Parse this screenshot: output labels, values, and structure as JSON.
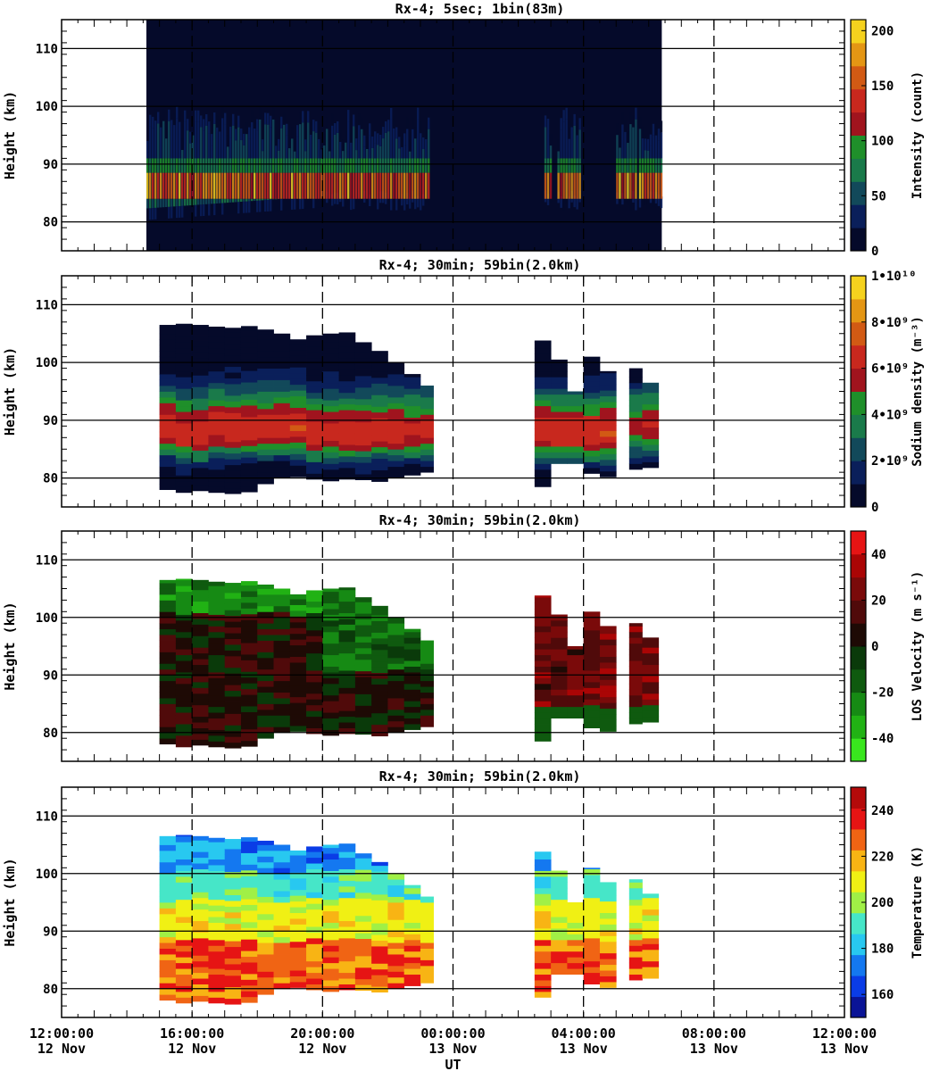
{
  "figure": {
    "x_axis_label": "UT",
    "x_tick_labels": [
      {
        "time": "12:00:00",
        "date": "12 Nov"
      },
      {
        "time": "16:00:00",
        "date": "12 Nov"
      },
      {
        "time": "20:00:00",
        "date": "12 Nov"
      },
      {
        "time": "00:00:00",
        "date": "13 Nov"
      },
      {
        "time": "04:00:00",
        "date": "13 Nov"
      },
      {
        "time": "08:00:00",
        "date": "13 Nov"
      },
      {
        "time": "12:00:00",
        "date": "13 Nov"
      }
    ]
  },
  "chart_data": [
    {
      "type": "heatmap",
      "title": "Rx-4;  5sec; 1bin(83m)",
      "ylabel": "Height (km)",
      "ylim": [
        75,
        115
      ],
      "xlim_hours": [
        12,
        36
      ],
      "y_ticks": [
        "80",
        "90",
        "100",
        "110"
      ],
      "data_x_range_hours": [
        14.6,
        30.4
      ],
      "colorbar": {
        "label": "Intensity (count)",
        "range": [
          0,
          210
        ],
        "tick_values": [
          0,
          50,
          100,
          150,
          200
        ],
        "tick_labels": [
          "0",
          "50",
          "100",
          "150",
          "200"
        ],
        "colors": [
          "#050a2a",
          "#0a1f5a",
          "#12495a",
          "#1a7a4a",
          "#1f8f2a",
          "#a0141e",
          "#c8281e",
          "#d25a14",
          "#e49614",
          "#f5d21e"
        ]
      },
      "observed_periods_hours": [
        [
          14.6,
          23.3
        ],
        [
          26.8,
          27.0
        ],
        [
          27.2,
          27.9
        ],
        [
          29.0,
          29.6
        ],
        [
          29.7,
          30.4
        ]
      ],
      "peak_layer_km": [
        84,
        88
      ]
    },
    {
      "type": "heatmap",
      "title": "Rx-4; 30min; 59bin(2.0km)",
      "ylabel": "Height (km)",
      "ylim": [
        75,
        115
      ],
      "xlim_hours": [
        12,
        36
      ],
      "y_ticks": [
        "80",
        "90",
        "100",
        "110"
      ],
      "colorbar": {
        "label": "Sodium density (m⁻³)",
        "range": [
          0,
          10000000000
        ],
        "tick_values": [
          0,
          2000000000,
          4000000000,
          6000000000,
          8000000000,
          10000000000
        ],
        "tick_labels": [
          "0",
          "2•10⁹",
          "4•10⁹",
          "6•10⁹",
          "8•10⁹",
          "1•10¹⁰"
        ],
        "colors": [
          "#050a2a",
          "#0a1f5a",
          "#12495a",
          "#1a7a4a",
          "#1f8f2a",
          "#a0141e",
          "#c8281e",
          "#d25a14",
          "#e49614",
          "#f5d21e"
        ]
      },
      "columns": [
        {
          "x_hours": [
            15.0,
            15.5
          ],
          "top_km": 106.5,
          "bottom_km": 78.0,
          "layer_km": [
            85,
            91
          ],
          "profile": "strong"
        },
        {
          "x_hours": [
            15.5,
            16.0
          ],
          "top_km": 106.7,
          "bottom_km": 77.5,
          "layer_km": [
            84,
            90
          ],
          "profile": "strong"
        },
        {
          "x_hours": [
            16.0,
            16.5
          ],
          "top_km": 106.5,
          "bottom_km": 77.8,
          "layer_km": [
            84,
            90
          ],
          "profile": "strong"
        },
        {
          "x_hours": [
            16.5,
            17.0
          ],
          "top_km": 106.2,
          "bottom_km": 77.5,
          "layer_km": [
            85,
            91
          ],
          "profile": "strong"
        },
        {
          "x_hours": [
            17.0,
            17.5
          ],
          "top_km": 106.0,
          "bottom_km": 77.3,
          "layer_km": [
            85,
            91
          ],
          "profile": "strong"
        },
        {
          "x_hours": [
            17.5,
            18.0
          ],
          "top_km": 106.3,
          "bottom_km": 77.6,
          "layer_km": [
            85,
            91
          ],
          "profile": "strong"
        },
        {
          "x_hours": [
            18.0,
            18.5
          ],
          "top_km": 105.7,
          "bottom_km": 79.0,
          "layer_km": [
            85,
            91
          ],
          "profile": "strong"
        },
        {
          "x_hours": [
            18.5,
            19.0
          ],
          "top_km": 105.0,
          "bottom_km": 80.0,
          "layer_km": [
            85,
            91
          ],
          "profile": "strong"
        },
        {
          "x_hours": [
            19.0,
            19.5
          ],
          "top_km": 104.0,
          "bottom_km": 80.2,
          "layer_km": [
            85,
            91
          ],
          "profile": "strong"
        },
        {
          "x_hours": [
            19.5,
            20.0
          ],
          "top_km": 104.7,
          "bottom_km": 79.8,
          "layer_km": [
            84,
            90
          ],
          "profile": "strong"
        },
        {
          "x_hours": [
            20.0,
            20.5
          ],
          "top_km": 105.0,
          "bottom_km": 79.5,
          "layer_km": [
            84,
            90
          ],
          "profile": "strong"
        },
        {
          "x_hours": [
            20.5,
            21.0
          ],
          "top_km": 105.2,
          "bottom_km": 79.8,
          "layer_km": [
            84,
            90
          ],
          "profile": "strong"
        },
        {
          "x_hours": [
            21.0,
            21.5
          ],
          "top_km": 103.5,
          "bottom_km": 79.7,
          "layer_km": [
            84,
            90
          ],
          "profile": "strong"
        },
        {
          "x_hours": [
            21.5,
            22.0
          ],
          "top_km": 102.0,
          "bottom_km": 79.4,
          "layer_km": [
            85,
            90
          ],
          "profile": "strong"
        },
        {
          "x_hours": [
            22.0,
            22.5
          ],
          "top_km": 100.0,
          "bottom_km": 80.0,
          "layer_km": [
            85,
            90
          ],
          "profile": "strong"
        },
        {
          "x_hours": [
            22.5,
            23.0
          ],
          "top_km": 98.0,
          "bottom_km": 80.5,
          "layer_km": [
            85,
            90
          ],
          "profile": "medium"
        },
        {
          "x_hours": [
            23.0,
            23.4
          ],
          "top_km": 96.0,
          "bottom_km": 81.0,
          "layer_km": [
            85,
            90
          ],
          "profile": "medium"
        },
        {
          "x_hours": [
            26.5,
            27.0
          ],
          "top_km": 103.8,
          "bottom_km": 78.5,
          "layer_km": [
            84,
            91
          ],
          "profile": "strong"
        },
        {
          "x_hours": [
            27.0,
            27.5
          ],
          "top_km": 100.5,
          "bottom_km": 82.5,
          "layer_km": [
            84,
            90
          ],
          "profile": "strong"
        },
        {
          "x_hours": [
            27.5,
            28.0
          ],
          "top_km": 95.0,
          "bottom_km": 82.5,
          "layer_km": [
            84,
            90
          ],
          "profile": "strong"
        },
        {
          "x_hours": [
            28.0,
            28.5
          ],
          "top_km": 101.0,
          "bottom_km": 80.8,
          "layer_km": [
            84,
            90
          ],
          "profile": "strong"
        },
        {
          "x_hours": [
            28.5,
            29.0
          ],
          "top_km": 98.5,
          "bottom_km": 80.2,
          "layer_km": [
            84,
            90
          ],
          "profile": "strong"
        },
        {
          "x_hours": [
            29.4,
            29.8
          ],
          "top_km": 99.0,
          "bottom_km": 81.5,
          "layer_km": [
            85,
            91
          ],
          "profile": "weak"
        },
        {
          "x_hours": [
            29.8,
            30.3
          ],
          "top_km": 96.5,
          "bottom_km": 81.8,
          "layer_km": [
            85,
            91
          ],
          "profile": "medium"
        }
      ]
    },
    {
      "type": "heatmap",
      "title": "Rx-4; 30min; 59bin(2.0km)",
      "ylabel": "Height (km)",
      "ylim": [
        75,
        115
      ],
      "xlim_hours": [
        12,
        36
      ],
      "y_ticks": [
        "80",
        "90",
        "100",
        "110"
      ],
      "colorbar": {
        "label": "LOS Velocity (m s⁻¹)",
        "range": [
          -50,
          50
        ],
        "tick_values": [
          -40,
          -20,
          0,
          20,
          40
        ],
        "tick_labels": [
          "-40",
          "-20",
          "0",
          "20",
          "40"
        ],
        "colors": [
          "#39e61e",
          "#21b214",
          "#168a14",
          "#0f5a0f",
          "#0a3a0a",
          "#1e0a05",
          "#500a0a",
          "#7a0a0a",
          "#aa0505",
          "#e61414"
        ]
      },
      "observations": "Same coverage as sodium density panel; 15-19 UT mostly near zero to slightly positive in 80-100 km with negative (green) values above 100 km; 20-23 UT negative (green) upper layers; 26.5-30.3 UT positive (red) velocities."
    },
    {
      "type": "heatmap",
      "title": "Rx-4; 30min; 59bin(2.0km)",
      "ylabel": "Height (km)",
      "ylim": [
        75,
        115
      ],
      "xlim_hours": [
        12,
        36
      ],
      "y_ticks": [
        "80",
        "90",
        "100",
        "110"
      ],
      "colorbar": {
        "label": "Temperature (K)",
        "range": [
          150,
          250
        ],
        "tick_values": [
          160,
          180,
          200,
          220,
          240
        ],
        "tick_labels": [
          "160",
          "180",
          "200",
          "220",
          "240"
        ],
        "colors": [
          "#0a1496",
          "#0a3ce6",
          "#1478f0",
          "#28c8f0",
          "#46e6c8",
          "#a0f046",
          "#f0f014",
          "#f8b414",
          "#f06414",
          "#e61414",
          "#b40a0a"
        ]
      },
      "observations": "Warm (220-245 K) layers at 80-88 km, mid temperatures (195-215 K) at 88-96 km, cold (165-185 K) above 100 km; same column coverage as sodium density panel."
    }
  ]
}
